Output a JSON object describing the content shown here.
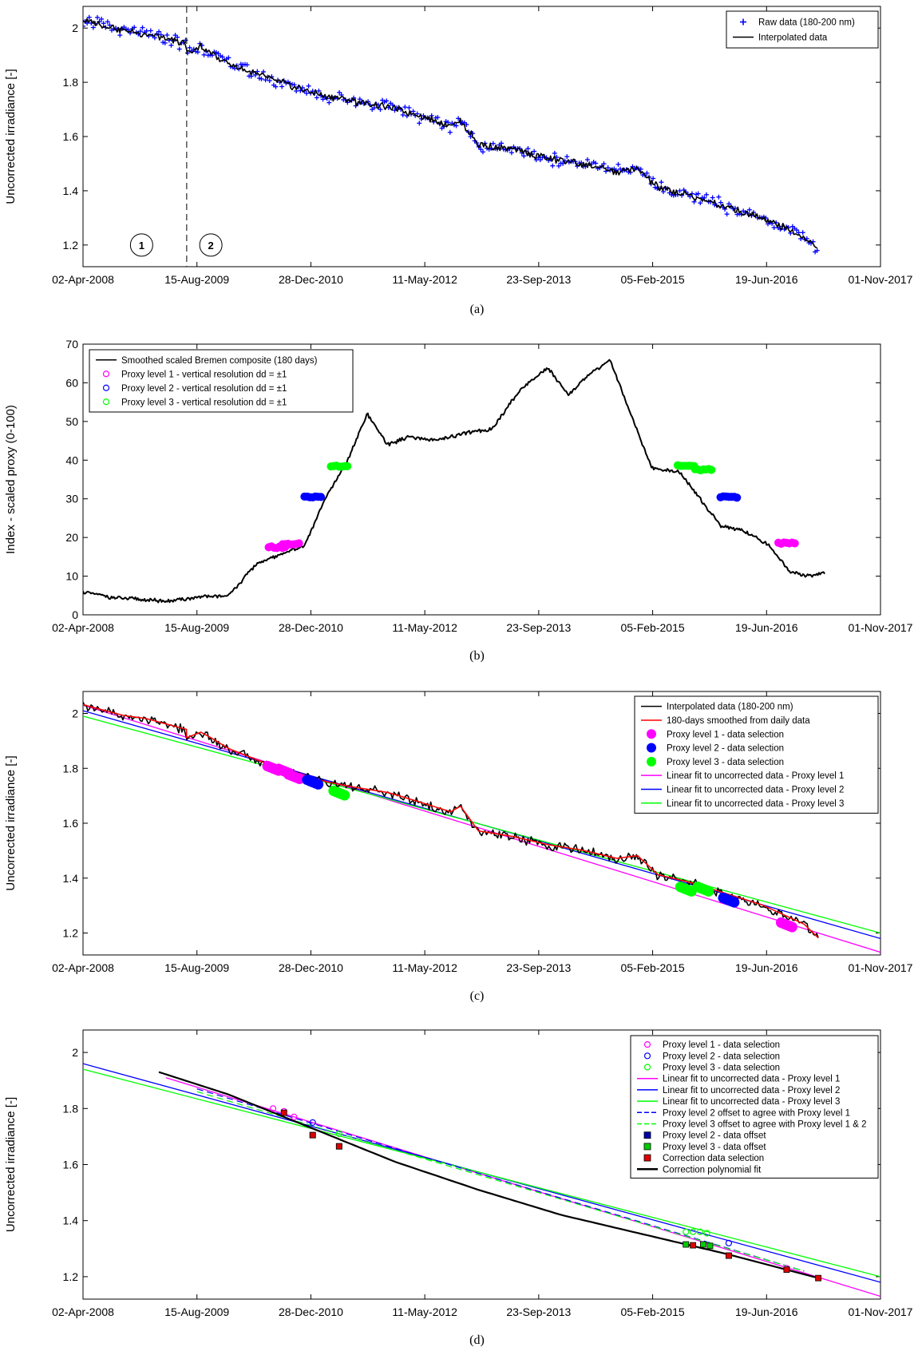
{
  "chart_data": [
    {
      "panel": "(a)",
      "type": "line",
      "ylabel": "Uncorrected irradiance [-]",
      "xticks": [
        "02-Apr-2008",
        "15-Aug-2009",
        "28-Dec-2010",
        "11-May-2012",
        "23-Sep-2013",
        "05-Feb-2015",
        "19-Jun-2016",
        "01-Nov-2017"
      ],
      "yticks": [
        "1.2",
        "1.4",
        "1.6",
        "1.8",
        "2"
      ],
      "xlim": [
        "2008-04-02",
        "2017-11-01"
      ],
      "ylim": [
        1.12,
        2.08
      ],
      "legend_position": "top-right",
      "grid": false,
      "annotations": [
        {
          "label": "1",
          "x": "2008-12-15",
          "y": 1.2
        },
        {
          "label": "2",
          "x": "2009-10-15",
          "y": 1.2
        }
      ],
      "vline": {
        "x": "2009-07-01",
        "style": "dashed"
      },
      "series": [
        {
          "name": "Raw data (180-200 nm)",
          "marker": "+",
          "color": "#0000ff",
          "sampled_from": "Interpolated data"
        },
        {
          "name": "Interpolated data",
          "color": "#000000",
          "x": [
            "2008-04-02",
            "2008-07-01",
            "2008-10-01",
            "2009-01-01",
            "2009-04-01",
            "2009-06-30",
            "2009-07-01",
            "2009-09-01",
            "2009-10-15",
            "2010-01-01",
            "2010-06-01",
            "2010-11-01",
            "2011-03-01",
            "2011-07-01",
            "2011-12-01",
            "2012-04-01",
            "2012-09-01",
            "2012-10-15",
            "2013-01-01",
            "2013-06-01",
            "2013-11-01",
            "2014-04-01",
            "2014-09-01",
            "2014-12-01",
            "2015-03-01",
            "2015-08-01",
            "2016-01-01",
            "2016-06-01",
            "2016-12-01",
            "2017-02-01"
          ],
          "y": [
            2.03,
            2.01,
            1.99,
            1.98,
            1.96,
            1.94,
            1.91,
            1.93,
            1.91,
            1.87,
            1.82,
            1.78,
            1.75,
            1.73,
            1.71,
            1.68,
            1.64,
            1.66,
            1.57,
            1.55,
            1.52,
            1.5,
            1.47,
            1.48,
            1.41,
            1.38,
            1.34,
            1.3,
            1.23,
            1.18
          ]
        }
      ]
    },
    {
      "panel": "(b)",
      "type": "line",
      "ylabel": "Index - scaled proxy (0-100)",
      "xticks": [
        "02-Apr-2008",
        "15-Aug-2009",
        "28-Dec-2010",
        "11-May-2012",
        "23-Sep-2013",
        "05-Feb-2015",
        "19-Jun-2016",
        "01-Nov-2017"
      ],
      "yticks": [
        "0",
        "10",
        "20",
        "30",
        "40",
        "50",
        "60",
        "70"
      ],
      "xlim": [
        "2008-04-02",
        "2017-11-01"
      ],
      "ylim": [
        0,
        70
      ],
      "legend_position": "top-left",
      "grid": false,
      "series": [
        {
          "name": "Smoothed scaled Bremen composite (180 days)",
          "color": "#000000",
          "x": [
            "2008-04-02",
            "2008-08-01",
            "2008-12-01",
            "2009-04-01",
            "2009-08-15",
            "2010-01-01",
            "2010-05-01",
            "2010-09-01",
            "2010-12-01",
            "2011-03-01",
            "2011-06-01",
            "2011-09-01",
            "2011-12-01",
            "2012-03-01",
            "2012-07-01",
            "2012-11-01",
            "2013-03-01",
            "2013-07-01",
            "2013-11-01",
            "2014-02-01",
            "2014-05-01",
            "2014-08-01",
            "2014-11-01",
            "2015-02-01",
            "2015-06-01",
            "2015-09-01",
            "2015-12-01",
            "2016-03-01",
            "2016-07-01",
            "2016-10-01",
            "2017-01-01",
            "2017-03-01"
          ],
          "y": [
            6,
            4.5,
            4,
            3.5,
            4.5,
            5,
            13,
            16,
            18,
            30,
            39,
            52,
            44,
            46,
            45,
            47,
            48,
            58,
            64,
            57,
            62,
            66,
            52,
            38,
            37,
            30,
            23,
            22,
            18,
            11,
            10,
            11
          ]
        },
        {
          "name": "Proxy level 1 - vertical resolution dd = ±1",
          "color": "#ff00ff",
          "marker": "o",
          "x": [
            "2010-08-01",
            "2010-10-01",
            "2016-09-15"
          ],
          "y": [
            17.5,
            18.3,
            18.5
          ]
        },
        {
          "name": "Proxy level 2 - vertical resolution dd = ±1",
          "color": "#0000ff",
          "marker": "o",
          "x": [
            "2011-01-05",
            "2016-01-05"
          ],
          "y": [
            30.5,
            30.5
          ]
        },
        {
          "name": "Proxy level 3 - vertical resolution dd = ±1",
          "color": "#00ff00",
          "marker": "o",
          "x": [
            "2011-05-01",
            "2015-07-01",
            "2015-09-15"
          ],
          "y": [
            38.5,
            38.5,
            37.5
          ]
        }
      ]
    },
    {
      "panel": "(c)",
      "type": "line",
      "ylabel": "Uncorrected irradiance [-]",
      "xticks": [
        "02-Apr-2008",
        "15-Aug-2009",
        "28-Dec-2010",
        "11-May-2012",
        "23-Sep-2013",
        "05-Feb-2015",
        "19-Jun-2016",
        "01-Nov-2017"
      ],
      "yticks": [
        "1.2",
        "1.4",
        "1.6",
        "1.8",
        "2"
      ],
      "xlim": [
        "2008-04-02",
        "2017-11-01"
      ],
      "ylim": [
        1.12,
        2.08
      ],
      "legend_position": "top-right",
      "grid": false,
      "series": [
        {
          "name": "Interpolated data (180-200 nm)",
          "color": "#000000"
        },
        {
          "name": "180-days smoothed from daily data",
          "color": "#ff0000"
        },
        {
          "name": "Proxy level 1 - data selection",
          "color": "#ff00ff",
          "marker": "filled-circle",
          "x": [
            "2010-07-15",
            "2010-09-01",
            "2010-10-15",
            "2016-09-15"
          ],
          "y": [
            1.8,
            1.79,
            1.77,
            1.23
          ]
        },
        {
          "name": "Proxy level 2 - data selection",
          "color": "#0000ff",
          "marker": "filled-circle",
          "x": [
            "2011-01-05",
            "2016-01-05"
          ],
          "y": [
            1.75,
            1.32
          ]
        },
        {
          "name": "Proxy level 3 - data selection",
          "color": "#00ff00",
          "marker": "filled-circle",
          "x": [
            "2011-05-01",
            "2015-07-01",
            "2015-09-15"
          ],
          "y": [
            1.71,
            1.36,
            1.36
          ]
        },
        {
          "name": "Linear fit to uncorrected data - Proxy level 1",
          "color": "#ff00ff",
          "x": [
            "2008-04-02",
            "2017-11-01"
          ],
          "y": [
            2.03,
            1.13
          ]
        },
        {
          "name": "Linear fit to uncorrected data - Proxy level 2",
          "color": "#0000ff",
          "x": [
            "2008-04-02",
            "2017-11-01"
          ],
          "y": [
            2.01,
            1.18
          ]
        },
        {
          "name": "Linear fit to uncorrected data - Proxy level 3",
          "color": "#00ff00",
          "x": [
            "2008-04-02",
            "2017-11-01"
          ],
          "y": [
            1.99,
            1.2
          ]
        }
      ]
    },
    {
      "panel": "(d)",
      "type": "line",
      "ylabel": "Uncorrected irradiance [-]",
      "xticks": [
        "02-Apr-2008",
        "15-Aug-2009",
        "28-Dec-2010",
        "11-May-2012",
        "23-Sep-2013",
        "05-Feb-2015",
        "19-Jun-2016",
        "01-Nov-2017"
      ],
      "yticks": [
        "1.2",
        "1.4",
        "1.6",
        "1.8",
        "2"
      ],
      "xlim": [
        "2008-04-02",
        "2017-11-01"
      ],
      "ylim": [
        1.12,
        2.08
      ],
      "legend_position": "top-right",
      "grid": false,
      "series": [
        {
          "name": "Proxy level 1 - data selection",
          "color": "#ff00ff",
          "marker": "open-circle",
          "x": [
            "2010-07-15",
            "2010-09-01",
            "2010-10-15",
            "2016-09-15"
          ],
          "y": [
            1.8,
            1.79,
            1.77,
            1.23
          ]
        },
        {
          "name": "Proxy level 2 - data selection",
          "color": "#0000ff",
          "marker": "open-circle",
          "x": [
            "2011-01-05",
            "2016-01-05"
          ],
          "y": [
            1.75,
            1.32
          ]
        },
        {
          "name": "Proxy level 3 - data selection",
          "color": "#00ff00",
          "marker": "open-circle",
          "x": [
            "2011-05-01",
            "2015-07-01",
            "2015-08-01",
            "2015-09-01",
            "2015-10-01"
          ],
          "y": [
            1.71,
            1.36,
            1.36,
            1.36,
            1.355
          ]
        },
        {
          "name": "Linear fit to uncorrected data - Proxy level 1",
          "color": "#ff00ff",
          "x": [
            "2009-04-01",
            "2017-11-01"
          ],
          "y": [
            1.91,
            1.13
          ]
        },
        {
          "name": "Linear fit to uncorrected data - Proxy level 2",
          "color": "#0000ff",
          "x": [
            "2008-04-02",
            "2017-11-01"
          ],
          "y": [
            1.96,
            1.18
          ]
        },
        {
          "name": "Linear fit to uncorrected data - Proxy level 3",
          "color": "#00ff00",
          "x": [
            "2008-04-02",
            "2017-11-01"
          ],
          "y": [
            1.94,
            1.2
          ]
        },
        {
          "name": "Proxy level 2 offset to agree with Proxy level 1",
          "color": "#0000ff",
          "style": "dashed",
          "x": [
            "2009-08-15",
            "2016-12-01"
          ],
          "y": [
            1.87,
            1.22
          ]
        },
        {
          "name": "Proxy level 3 offset to agree with Proxy level 1 & 2",
          "color": "#00ff00",
          "style": "dashed",
          "x": [
            "2009-08-15",
            "2016-12-01"
          ],
          "y": [
            1.86,
            1.22
          ]
        },
        {
          "name": "Proxy level 2 - data offset",
          "color": "#0000aa",
          "marker": "filled-square",
          "x": [
            "2011-01-05",
            "2016-01-05"
          ],
          "y": [
            1.705,
            1.275
          ]
        },
        {
          "name": "Proxy level 3 - data offset",
          "color": "#00cc00",
          "marker": "filled-square",
          "x": [
            "2011-05-01",
            "2015-07-01",
            "2015-09-15",
            "2015-10-15"
          ],
          "y": [
            1.665,
            1.315,
            1.315,
            1.31
          ]
        },
        {
          "name": "Correction data selection",
          "color": "#dd0000",
          "marker": "filled-square",
          "x": [
            "2010-09-01",
            "2011-01-05",
            "2011-05-01",
            "2015-08-01",
            "2016-01-05",
            "2016-09-15",
            "2017-02-01"
          ],
          "y": [
            1.785,
            1.705,
            1.665,
            1.312,
            1.275,
            1.225,
            1.195
          ]
        },
        {
          "name": "Correction polynomial fit",
          "color": "#000000",
          "x": [
            "2009-03-01",
            "2010-01-01",
            "2011-01-01",
            "2012-01-01",
            "2013-01-01",
            "2014-01-01",
            "2015-01-01",
            "2016-01-01",
            "2017-02-01"
          ],
          "y": [
            1.93,
            1.85,
            1.73,
            1.61,
            1.51,
            1.42,
            1.35,
            1.28,
            1.195
          ]
        }
      ]
    }
  ]
}
